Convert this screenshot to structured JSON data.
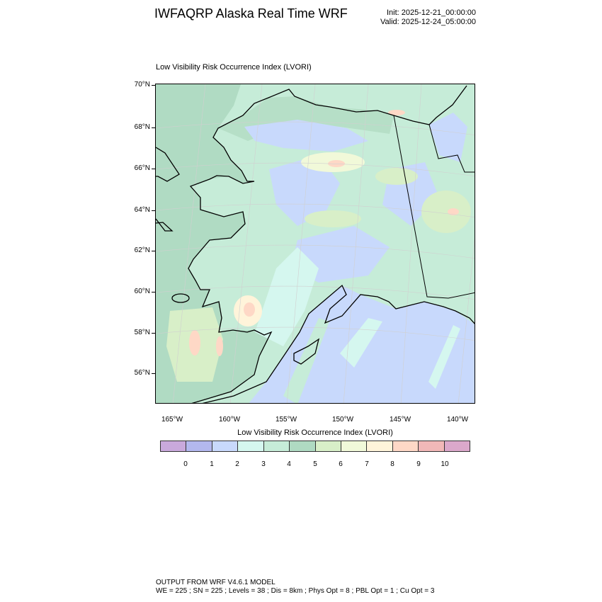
{
  "header": {
    "title": "IWFAQRP Alaska Real Time WRF",
    "init": "Init: 2025-12-21_00:00:00",
    "valid": "Valid: 2025-12-24_05:00:00"
  },
  "plot": {
    "subtitle": "Low Visibility Risk Occurrence Index   (LVORI)",
    "lat_labels": [
      "70°N",
      "68°N",
      "66°N",
      "64°N",
      "62°N",
      "60°N",
      "58°N",
      "56°N"
    ],
    "lon_labels": [
      "165°W",
      "160°W",
      "155°W",
      "150°W",
      "145°W",
      "140°W"
    ]
  },
  "colorbar": {
    "title": "Low Visibility Risk Occurrence Index  (LVORI)",
    "labels": [
      "0",
      "1",
      "2",
      "3",
      "4",
      "5",
      "6",
      "7",
      "8",
      "9",
      "10"
    ],
    "colors": [
      "#c9a9dc",
      "#b3b8ee",
      "#c8d9fc",
      "#d5f7ef",
      "#c6ecd8",
      "#afdac2",
      "#d8efc8",
      "#f1f9d9",
      "#fff4da",
      "#fed8c6",
      "#f1b8b8",
      "#dba8cb"
    ]
  },
  "footer": {
    "line1": "OUTPUT FROM WRF V4.6.1 MODEL",
    "line2": "WE = 225 ; SN = 225 ; Levels = 38 ; Dis = 8km ; Phys Opt = 8 ; PBL Opt = 1 ; Cu Opt = 3"
  }
}
